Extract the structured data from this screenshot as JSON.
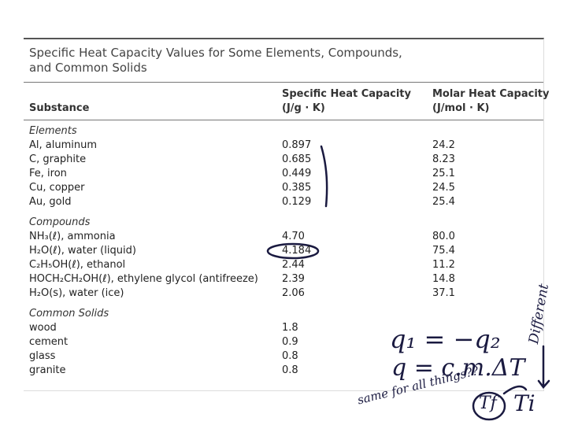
{
  "title": [
    "Specific Heat Capacity Values for Some Elements, Compounds,",
    "and Common Solids"
  ],
  "header": {
    "substance": "Substance",
    "specific": [
      "Specific Heat Capacity",
      "(J/g · K)"
    ],
    "molar": [
      "Molar Heat Capacity",
      "(J/mol · K)"
    ]
  },
  "sections": [
    {
      "name": "Elements",
      "rows": [
        [
          "Al, aluminum",
          "0.897",
          "24.2"
        ],
        [
          "C, graphite",
          "0.685",
          "8.23"
        ],
        [
          "Fe, iron",
          "0.449",
          "25.1"
        ],
        [
          "Cu, copper",
          "0.385",
          "24.5"
        ],
        [
          "Au, gold",
          "0.129",
          "25.4"
        ]
      ]
    },
    {
      "name": "Compounds",
      "rows": [
        [
          "NH₃(ℓ), ammonia",
          "4.70",
          "80.0"
        ],
        [
          "H₂O(ℓ), water (liquid)",
          "4.184",
          "75.4"
        ],
        [
          "C₂H₅OH(ℓ), ethanol",
          "2.44",
          "11.2"
        ],
        [
          "HOCH₂CH₂OH(ℓ), ethylene glycol (antifreeze)",
          "2.39",
          "14.8"
        ],
        [
          "H₂O(s), water (ice)",
          "2.06",
          "37.1"
        ]
      ]
    },
    {
      "name": "Common Solids",
      "rows": [
        [
          "wood",
          "1.8",
          ""
        ],
        [
          "cement",
          "0.9",
          ""
        ],
        [
          "glass",
          "0.8",
          ""
        ],
        [
          "granite",
          "0.8",
          ""
        ]
      ]
    }
  ],
  "annotations": [
    "q₁ = −q₂",
    "q = c.m.ΔT",
    "same for all things??",
    "Tf",
    "Ti",
    "Different"
  ]
}
